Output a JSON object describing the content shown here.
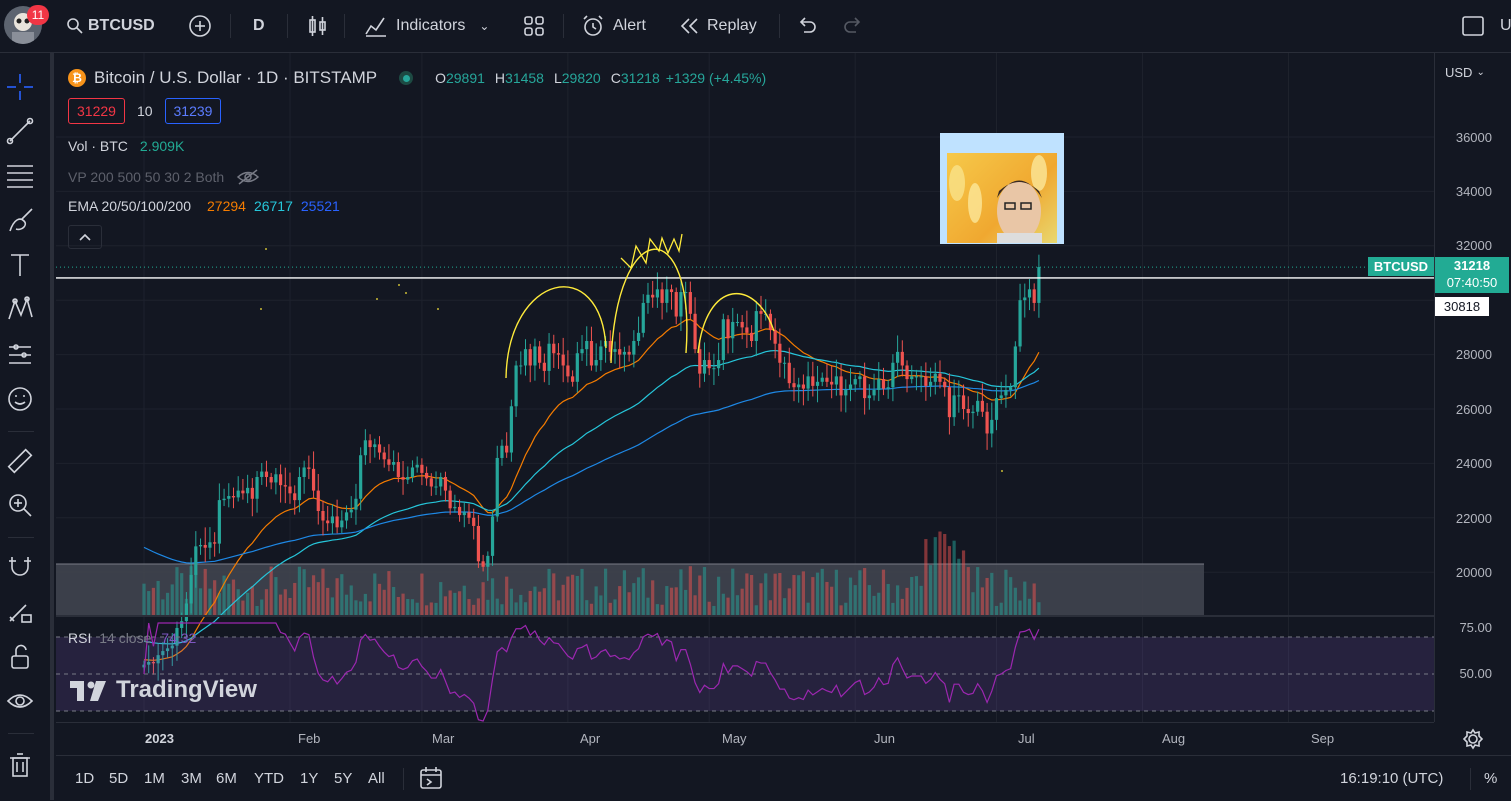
{
  "top_bar": {
    "notifications": "11",
    "symbol": "BTCUSD",
    "interval": "D",
    "indicators_label": "Indicators",
    "alert_label": "Alert",
    "replay_label": "Replay",
    "right_label": "U"
  },
  "legend": {
    "title": "Bitcoin / U.S. Dollar · 1D · BITSTAMP",
    "ohlc": {
      "o_label": "O",
      "o": "29891",
      "h_label": "H",
      "h": "31458",
      "l_label": "L",
      "l": "29820",
      "c_label": "C",
      "c": "31218",
      "change": "+1329 (+4.45%)"
    },
    "bid": "31229",
    "spread": "10",
    "ask": "31239",
    "vol_label": "Vol · BTC",
    "vol_value": "2.909K",
    "vp_label": "VP 200 500 50 30 2 Both",
    "ema_label": "EMA 20/50/100/200",
    "ema_values": [
      "27294",
      "26717",
      "25521"
    ],
    "rsi_label": "RSI",
    "rsi_params": "14 close",
    "rsi_value": "74.32"
  },
  "price_axis": {
    "currency": "USD",
    "labels": [
      "36000",
      "34000",
      "32000",
      "28000",
      "26000",
      "24000",
      "22000",
      "20000"
    ],
    "symbol_tag": "BTCUSD",
    "last_price": "31218",
    "countdown": "07:40:50",
    "line_price": "30818",
    "rsi_labels": [
      "75.00",
      "50.00"
    ]
  },
  "time_axis": {
    "labels": [
      "2023",
      "Feb",
      "Mar",
      "Apr",
      "May",
      "Jun",
      "Jul",
      "Aug",
      "Sep"
    ]
  },
  "bottom_bar": {
    "ranges": [
      "1D",
      "5D",
      "1M",
      "3M",
      "6M",
      "YTD",
      "1Y",
      "5Y",
      "All"
    ],
    "clock": "16:19:10 (UTC)",
    "percent_label": "%"
  },
  "watermark": "TradingView",
  "colors": {
    "up": "#26a69a",
    "down": "#ef5350",
    "ema20": "#f57c00",
    "ema50": "#26c6da",
    "ema100": "#1e88e5",
    "ema200": "#3f51b5",
    "rsi": "#9c27b0",
    "drawing": "#ffeb3b",
    "bg": "#131722"
  },
  "chart_data": {
    "type": "candlestick",
    "series_close_daily": [
      16600,
      16700,
      16650,
      16950,
      17100,
      17200,
      17300,
      17950,
      18200,
      18850,
      19900,
      20950,
      21000,
      20900,
      21100,
      21050,
      22650,
      22700,
      22800,
      22750,
      23000,
      22900,
      23100,
      22700,
      23500,
      23700,
      23500,
      23300,
      23600,
      23200,
      23150,
      22900,
      22650,
      23500,
      23850,
      23800,
      23000,
      22250,
      21900,
      21800,
      22050,
      21650,
      21900,
      22200,
      22300,
      22700,
      24300,
      24850,
      24600,
      24700,
      24400,
      24150,
      23950,
      24050,
      23500,
      23400,
      23500,
      23850,
      23950,
      23650,
      23450,
      23150,
      23150,
      23500,
      23000,
      22350,
      22400,
      22100,
      22200,
      22000,
      21700,
      20400,
      20200,
      20600,
      22050,
      24200,
      24650,
      24400,
      26100,
      27600,
      27600,
      28200,
      27600,
      28300,
      27700,
      27400,
      28400,
      28050,
      28000,
      27600,
      27200,
      27000,
      28050,
      28200,
      28500,
      27600,
      27800,
      28300,
      28500,
      28100,
      28200,
      28000,
      28100,
      28000,
      28500,
      28800,
      29900,
      30200,
      30100,
      30400,
      29900,
      30400,
      30300,
      29400,
      30300,
      30300,
      29500,
      28200,
      27300,
      27800,
      27500,
      27500,
      27800,
      29300,
      28600,
      29200,
      29200,
      29000,
      28800,
      28500,
      29600,
      29500,
      29500,
      28900,
      28400,
      27700,
      27700,
      26950,
      26800,
      26900,
      26750,
      27200,
      26850,
      27000,
      27150,
      27000,
      26900,
      27200,
      26500,
      26700,
      26900,
      27100,
      27200,
      26400,
      26500,
      26700,
      27100,
      26750,
      26800,
      27700,
      28100,
      27600,
      27100,
      27200,
      27200,
      27200,
      26850,
      27000,
      27300,
      27000,
      26800,
      25700,
      26500,
      26500,
      26000,
      25850,
      25900,
      26300,
      25900,
      25100,
      25600,
      26400,
      26500,
      26700,
      26800,
      28300,
      30000,
      30100,
      30400,
      29900,
      31218
    ],
    "x_range": [
      "2023-01-01",
      "2023-09-25"
    ],
    "y_range": [
      18000,
      37500
    ],
    "ema": [
      {
        "name": "EMA 20",
        "last": 27294
      },
      {
        "name": "EMA 50",
        "last": 26717
      },
      {
        "name": "EMA 100",
        "last": 25521
      }
    ],
    "rsi_last": 74.32,
    "rsi_levels": [
      70,
      50,
      30
    ]
  }
}
